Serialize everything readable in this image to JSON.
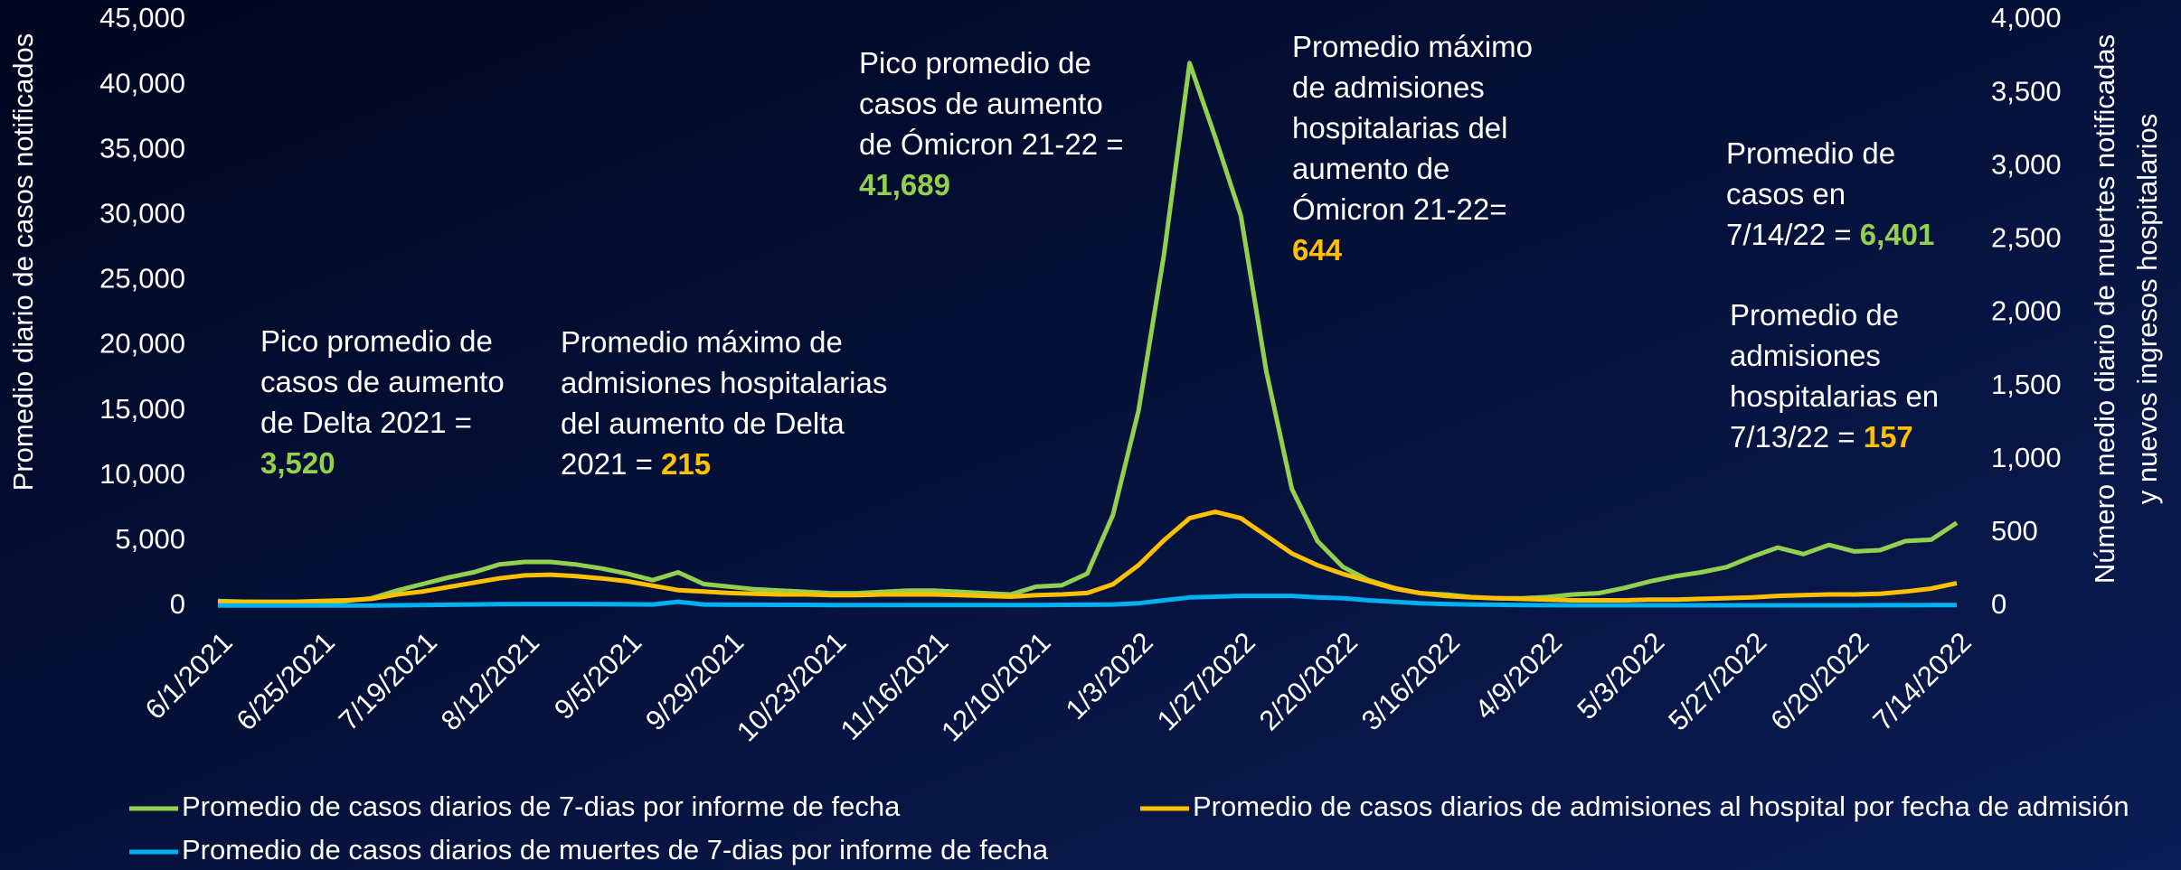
{
  "chart_data": {
    "type": "line",
    "categories": [
      "6/1/2021",
      null,
      null,
      null,
      "6/25/2021",
      null,
      null,
      null,
      "7/19/2021",
      null,
      null,
      null,
      "8/12/2021",
      null,
      null,
      null,
      "9/5/2021",
      null,
      null,
      null,
      "9/29/2021",
      null,
      null,
      null,
      "10/23/2021",
      null,
      null,
      null,
      "11/16/2021",
      null,
      null,
      null,
      "12/10/2021",
      null,
      null,
      null,
      "1/3/2022",
      null,
      null,
      null,
      "1/27/2022",
      null,
      null,
      null,
      "2/20/2022",
      null,
      null,
      null,
      "3/16/2022",
      null,
      null,
      null,
      "4/9/2022",
      null,
      null,
      null,
      "5/3/2022",
      null,
      null,
      null,
      "5/27/2022",
      null,
      null,
      null,
      "6/20/2022",
      null,
      null,
      null,
      "7/14/2022"
    ],
    "series": [
      {
        "name": "Promedio de casos diarios de 7-dias por informe de fecha",
        "color": "#92d050",
        "axis": "y",
        "values": [
          400,
          350,
          300,
          300,
          350,
          400,
          600,
          1200,
          1700,
          2200,
          2600,
          3200,
          3400,
          3400,
          3200,
          2900,
          2500,
          2000,
          2600,
          1700,
          1500,
          1300,
          1200,
          1100,
          1000,
          1000,
          1100,
          1200,
          1200,
          1100,
          1000,
          900,
          1500,
          1600,
          2500,
          7000,
          15000,
          27000,
          41689,
          36000,
          30000,
          18000,
          9000,
          5000,
          3000,
          2000,
          1400,
          1000,
          900,
          700,
          600,
          600,
          700,
          900,
          1000,
          1400,
          1900,
          2300,
          2600,
          3000,
          3800,
          4500,
          4000,
          4700,
          4200,
          4300,
          5000,
          5100,
          6401
        ]
      },
      {
        "name": "Promedio de casos diarios de admisiones al hospital por fecha de admisión",
        "color": "#ffc000",
        "axis": "y2",
        "values": [
          30,
          30,
          30,
          30,
          35,
          40,
          50,
          80,
          100,
          130,
          160,
          190,
          210,
          215,
          205,
          190,
          170,
          140,
          110,
          100,
          90,
          85,
          80,
          80,
          75,
          75,
          80,
          80,
          80,
          75,
          70,
          65,
          75,
          80,
          90,
          150,
          280,
          450,
          600,
          644,
          600,
          480,
          360,
          280,
          220,
          170,
          120,
          90,
          70,
          60,
          55,
          50,
          45,
          40,
          40,
          40,
          45,
          45,
          50,
          55,
          60,
          70,
          75,
          80,
          80,
          85,
          100,
          120,
          157
        ]
      },
      {
        "name": "Promedio de casos diarios de muertes de 7-dias por informe de fecha",
        "color": "#00b0f0",
        "axis": "y2",
        "values": [
          5,
          5,
          5,
          5,
          5,
          5,
          5,
          6,
          8,
          10,
          12,
          14,
          15,
          15,
          15,
          14,
          13,
          12,
          30,
          12,
          10,
          10,
          9,
          9,
          8,
          8,
          8,
          8,
          8,
          8,
          8,
          8,
          8,
          9,
          10,
          12,
          20,
          40,
          60,
          65,
          70,
          70,
          70,
          60,
          55,
          40,
          30,
          20,
          15,
          12,
          10,
          8,
          7,
          6,
          6,
          6,
          6,
          6,
          6,
          6,
          6,
          6,
          6,
          6,
          6,
          7,
          7,
          8,
          8
        ]
      }
    ],
    "ylim": [
      0,
      45000
    ],
    "yticks": [
      0,
      {
        "value": 5000,
        "label": "5,000"
      },
      {
        "value": 10000,
        "label": "10,000"
      },
      {
        "value": 15000,
        "label": "15,000"
      },
      {
        "value": 20000,
        "label": "20,000"
      },
      {
        "value": 25000,
        "label": "25,000"
      },
      {
        "value": 30000,
        "label": "30,000"
      },
      {
        "value": 35000,
        "label": "35,000"
      },
      {
        "value": 40000,
        "label": "40,000"
      },
      {
        "value": 45000,
        "label": "45,000"
      }
    ],
    "y2lim": [
      0,
      4000
    ],
    "y2ticks": [
      0,
      500,
      {
        "value": 1000,
        "label": "1,000"
      },
      {
        "value": 1500,
        "label": "1,500"
      },
      {
        "value": 2000,
        "label": "2,000"
      },
      {
        "value": 2500,
        "label": "2,500"
      },
      {
        "value": 3000,
        "label": "3,000"
      },
      {
        "value": 3500,
        "label": "3,500"
      },
      {
        "value": 4000,
        "label": "4,000"
      }
    ],
    "y_label": "Promedio diario de casos notificados",
    "y2_label": [
      "Número medio diario de muertes notificadas",
      "y nuevos ingresos hospitalarios"
    ],
    "grid": false,
    "annotations": [
      {
        "lines": [
          "Pico promedio de",
          "casos de aumento",
          "de Delta 2021 =",
          {
            "text": "3,520",
            "color": "#92d050"
          }
        ]
      },
      {
        "lines": [
          "Promedio máximo de",
          "admisiones hospitalarias",
          "del aumento de Delta",
          [
            "2021 = ",
            {
              "text": "215",
              "color": "#ffc000"
            }
          ]
        ]
      },
      {
        "lines": [
          "Pico promedio de",
          "casos de aumento",
          "de Ómicron 21-22 =",
          {
            "text": "41,689",
            "color": "#92d050"
          }
        ]
      },
      {
        "lines": [
          "Promedio máximo",
          "de admisiones",
          "hospitalarias del",
          "aumento de",
          "Ómicron 21-22=",
          {
            "text": "644",
            "color": "#ffc000"
          }
        ]
      },
      {
        "lines": [
          "Promedio de",
          "casos en",
          [
            "7/14/22 = ",
            {
              "text": "6,401",
              "color": "#92d050"
            }
          ]
        ]
      },
      {
        "lines": [
          "Promedio de",
          "admisiones",
          "hospitalarias en",
          [
            "7/13/22 = ",
            {
              "text": "157",
              "color": "#ffc000"
            }
          ]
        ]
      }
    ]
  }
}
